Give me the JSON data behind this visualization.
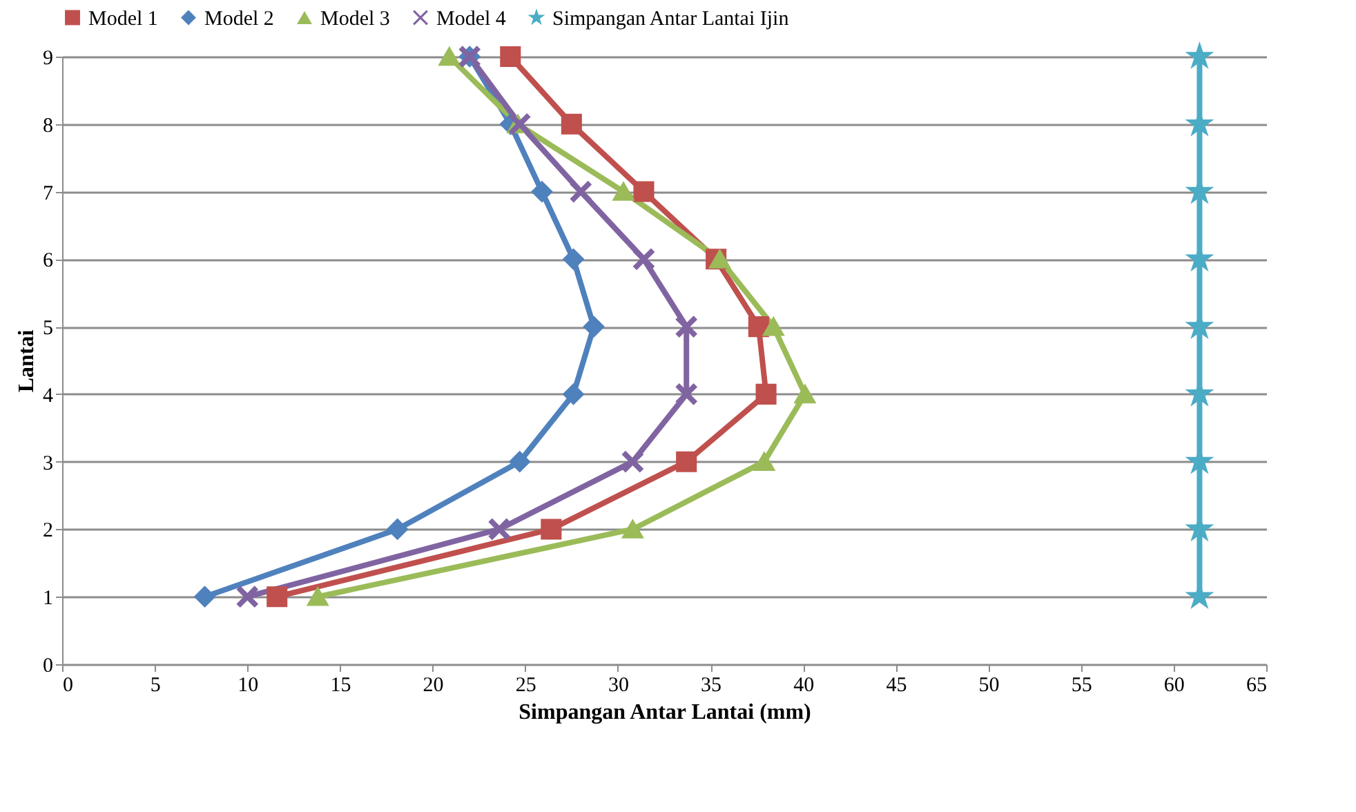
{
  "chart_data": {
    "type": "line",
    "orientation": "horizontal",
    "xlabel": "Simpangan Antar Lantai (mm)",
    "ylabel": "Lantai",
    "x": [
      1,
      2,
      3,
      4,
      5,
      6,
      7,
      8,
      9
    ],
    "xlim": [
      0,
      65
    ],
    "xticks": [
      0,
      5,
      10,
      15,
      20,
      25,
      30,
      35,
      40,
      45,
      50,
      55,
      60,
      65
    ],
    "ylim": [
      0,
      9
    ],
    "yticks": [
      0,
      1,
      2,
      3,
      4,
      5,
      6,
      7,
      8,
      9
    ],
    "grid": "y",
    "legend": "top",
    "line_style": "solid",
    "series": [
      {
        "name": "Model 1",
        "color": "#c0504d",
        "marker": "square",
        "values": [
          11.6,
          26.4,
          33.7,
          38.0,
          37.6,
          35.3,
          31.4,
          27.5,
          24.2
        ]
      },
      {
        "name": "Model 2",
        "color": "#4f81bd",
        "marker": "diamond",
        "values": [
          7.7,
          18.1,
          24.7,
          27.6,
          28.7,
          27.6,
          25.9,
          24.2,
          22.0
        ]
      },
      {
        "name": "Model 3",
        "color": "#9bbb59",
        "marker": "triangle",
        "values": [
          13.8,
          30.8,
          37.9,
          40.1,
          38.4,
          35.5,
          30.3,
          24.6,
          20.9
        ]
      },
      {
        "name": "Model 4",
        "color": "#8064a2",
        "marker": "cross",
        "values": [
          10.0,
          23.6,
          30.8,
          33.7,
          33.7,
          31.4,
          28.0,
          24.7,
          22.0
        ]
      },
      {
        "name": "Simpangan Antar Lantai Ijin",
        "color": "#4bacc6",
        "marker": "star",
        "values": [
          61.4,
          61.4,
          61.4,
          61.4,
          61.4,
          61.4,
          61.4,
          61.4,
          61.4
        ]
      }
    ]
  }
}
